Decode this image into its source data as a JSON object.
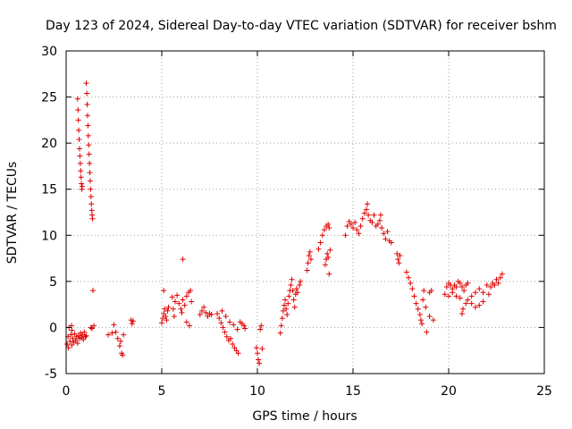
{
  "chart_data": {
    "type": "scatter",
    "title": "Day 123 of 2024, Sidereal Day-to-day VTEC variation (SDTVAR) for receiver bshm",
    "xlabel": "GPS time / hours",
    "ylabel": "SDTVAR / TECUs",
    "xlim": [
      0,
      25
    ],
    "ylim": [
      -5,
      30
    ],
    "xticks": [
      0,
      5,
      10,
      15,
      20,
      25
    ],
    "yticks": [
      -5,
      0,
      5,
      10,
      15,
      20,
      25,
      30
    ],
    "xtick_labels": [
      "0",
      "5",
      "10",
      "15",
      "20",
      "25"
    ],
    "ytick_labels": [
      "-5",
      "0",
      "5",
      "10",
      "15",
      "20",
      "25",
      "30"
    ],
    "grid": true,
    "marker": "+",
    "series": [
      {
        "name": "SDTVAR",
        "color": "#e00000",
        "points": [
          [
            0.05,
            -1.8
          ],
          [
            0.1,
            -1.0
          ],
          [
            0.12,
            -2.2
          ],
          [
            0.15,
            0.0
          ],
          [
            0.2,
            -1.5
          ],
          [
            0.25,
            -0.8
          ],
          [
            0.3,
            -1.9
          ],
          [
            0.35,
            -1.2
          ],
          [
            0.4,
            -1.6
          ],
          [
            0.45,
            -0.7
          ],
          [
            0.5,
            -1.4
          ],
          [
            0.55,
            -1.0
          ],
          [
            0.6,
            -1.7
          ],
          [
            0.65,
            -0.9
          ],
          [
            0.7,
            -1.2
          ],
          [
            0.75,
            -0.6
          ],
          [
            0.8,
            -1.1
          ],
          [
            0.85,
            -0.8
          ],
          [
            0.9,
            -1.3
          ],
          [
            0.95,
            -0.5
          ],
          [
            1.0,
            -1.0
          ],
          [
            1.05,
            -0.9
          ],
          [
            0.28,
            0.2
          ],
          [
            0.3,
            -0.3
          ],
          [
            0.6,
            24.8
          ],
          [
            0.62,
            23.6
          ],
          [
            0.64,
            22.5
          ],
          [
            0.66,
            21.4
          ],
          [
            0.68,
            20.4
          ],
          [
            0.7,
            19.4
          ],
          [
            0.72,
            18.6
          ],
          [
            0.74,
            17.8
          ],
          [
            0.76,
            17.0
          ],
          [
            0.78,
            16.3
          ],
          [
            0.8,
            15.6
          ],
          [
            0.82,
            15.0
          ],
          [
            0.84,
            15.3
          ],
          [
            1.05,
            26.5
          ],
          [
            1.08,
            25.4
          ],
          [
            1.1,
            24.2
          ],
          [
            1.12,
            23.0
          ],
          [
            1.14,
            21.9
          ],
          [
            1.16,
            20.8
          ],
          [
            1.18,
            19.8
          ],
          [
            1.2,
            18.8
          ],
          [
            1.22,
            17.8
          ],
          [
            1.24,
            16.8
          ],
          [
            1.26,
            15.9
          ],
          [
            1.28,
            15.0
          ],
          [
            1.3,
            14.2
          ],
          [
            1.32,
            13.4
          ],
          [
            1.34,
            12.7
          ],
          [
            1.36,
            12.2
          ],
          [
            1.38,
            11.8
          ],
          [
            1.4,
            4.0
          ],
          [
            1.3,
            0.0
          ],
          [
            1.45,
            0.2
          ],
          [
            1.35,
            -0.1
          ],
          [
            2.2,
            -0.8
          ],
          [
            2.4,
            -0.6
          ],
          [
            2.5,
            0.3
          ],
          [
            2.6,
            -0.5
          ],
          [
            2.7,
            -1.2
          ],
          [
            2.8,
            -2.0
          ],
          [
            2.9,
            -2.8
          ],
          [
            2.95,
            -3.0
          ],
          [
            3.0,
            -0.8
          ],
          [
            2.85,
            -1.5
          ],
          [
            3.4,
            0.8
          ],
          [
            3.45,
            0.4
          ],
          [
            3.5,
            0.7
          ],
          [
            5.0,
            0.5
          ],
          [
            5.05,
            1.0
          ],
          [
            5.1,
            1.5
          ],
          [
            5.15,
            2.0
          ],
          [
            5.2,
            1.2
          ],
          [
            5.25,
            0.8
          ],
          [
            5.3,
            1.8
          ],
          [
            5.35,
            2.2
          ],
          [
            5.1,
            4.0
          ],
          [
            5.55,
            3.3
          ],
          [
            5.6,
            2.0
          ],
          [
            5.65,
            1.2
          ],
          [
            5.7,
            2.8
          ],
          [
            5.8,
            3.5
          ],
          [
            5.9,
            2.6
          ],
          [
            6.0,
            2.0
          ],
          [
            6.05,
            1.6
          ],
          [
            6.1,
            3.0
          ],
          [
            6.2,
            2.4
          ],
          [
            6.3,
            3.4
          ],
          [
            6.4,
            3.8
          ],
          [
            6.5,
            4.0
          ],
          [
            6.55,
            2.8
          ],
          [
            6.1,
            7.4
          ],
          [
            6.3,
            0.6
          ],
          [
            6.45,
            0.2
          ],
          [
            7.0,
            1.4
          ],
          [
            7.1,
            1.8
          ],
          [
            7.2,
            2.2
          ],
          [
            7.3,
            1.6
          ],
          [
            7.4,
            1.2
          ],
          [
            7.5,
            1.5
          ],
          [
            7.6,
            1.4
          ],
          [
            7.9,
            1.5
          ],
          [
            8.0,
            1.0
          ],
          [
            8.1,
            0.5
          ],
          [
            8.2,
            0.0
          ],
          [
            8.3,
            -0.5
          ],
          [
            8.4,
            -1.0
          ],
          [
            8.5,
            -1.4
          ],
          [
            8.6,
            -1.2
          ],
          [
            8.7,
            -1.8
          ],
          [
            8.8,
            -2.2
          ],
          [
            8.9,
            -2.5
          ],
          [
            9.0,
            -2.8
          ],
          [
            8.15,
            1.8
          ],
          [
            8.35,
            1.2
          ],
          [
            8.55,
            0.6
          ],
          [
            8.75,
            0.3
          ],
          [
            8.95,
            -0.2
          ],
          [
            9.1,
            0.6
          ],
          [
            9.2,
            0.4
          ],
          [
            9.3,
            0.2
          ],
          [
            9.35,
            -0.1
          ],
          [
            9.95,
            -2.2
          ],
          [
            10.0,
            -2.8
          ],
          [
            10.05,
            -3.5
          ],
          [
            10.1,
            -3.9
          ],
          [
            10.15,
            -0.2
          ],
          [
            10.2,
            0.2
          ],
          [
            10.25,
            -2.3
          ],
          [
            11.2,
            -0.6
          ],
          [
            11.25,
            0.2
          ],
          [
            11.3,
            1.0
          ],
          [
            11.35,
            1.8
          ],
          [
            11.4,
            2.4
          ],
          [
            11.45,
            3.0
          ],
          [
            11.5,
            2.0
          ],
          [
            11.55,
            1.4
          ],
          [
            11.6,
            2.6
          ],
          [
            11.65,
            3.4
          ],
          [
            11.7,
            4.0
          ],
          [
            11.75,
            4.6
          ],
          [
            11.8,
            5.2
          ],
          [
            11.85,
            4.0
          ],
          [
            11.9,
            3.0
          ],
          [
            11.95,
            2.2
          ],
          [
            12.0,
            3.6
          ],
          [
            12.05,
            4.2
          ],
          [
            12.1,
            3.8
          ],
          [
            12.2,
            4.6
          ],
          [
            12.25,
            5.0
          ],
          [
            12.6,
            6.2
          ],
          [
            12.65,
            7.0
          ],
          [
            12.7,
            7.8
          ],
          [
            12.75,
            8.2
          ],
          [
            12.8,
            7.4
          ],
          [
            13.2,
            8.5
          ],
          [
            13.3,
            9.2
          ],
          [
            13.4,
            10.0
          ],
          [
            13.5,
            10.6
          ],
          [
            13.6,
            11.0
          ],
          [
            13.7,
            11.2
          ],
          [
            13.75,
            10.8
          ],
          [
            13.55,
            6.8
          ],
          [
            13.6,
            7.4
          ],
          [
            13.65,
            8.0
          ],
          [
            13.7,
            7.6
          ],
          [
            13.75,
            5.8
          ],
          [
            13.8,
            8.4
          ],
          [
            14.6,
            10.0
          ],
          [
            14.7,
            11.0
          ],
          [
            14.8,
            11.5
          ],
          [
            14.9,
            11.2
          ],
          [
            15.0,
            10.8
          ],
          [
            15.1,
            11.4
          ],
          [
            15.2,
            10.6
          ],
          [
            15.3,
            10.2
          ],
          [
            15.4,
            11.0
          ],
          [
            15.5,
            11.8
          ],
          [
            15.6,
            12.4
          ],
          [
            15.7,
            12.8
          ],
          [
            15.75,
            13.4
          ],
          [
            15.8,
            12.2
          ],
          [
            15.9,
            11.6
          ],
          [
            16.0,
            11.4
          ],
          [
            16.1,
            12.2
          ],
          [
            16.2,
            11.0
          ],
          [
            16.3,
            11.2
          ],
          [
            16.4,
            11.6
          ],
          [
            16.45,
            12.2
          ],
          [
            16.5,
            10.8
          ],
          [
            16.6,
            10.2
          ],
          [
            16.7,
            9.6
          ],
          [
            16.8,
            10.4
          ],
          [
            16.9,
            9.4
          ],
          [
            17.0,
            9.2
          ],
          [
            17.3,
            8.0
          ],
          [
            17.35,
            7.4
          ],
          [
            17.4,
            7.0
          ],
          [
            17.45,
            7.8
          ],
          [
            17.8,
            6.0
          ],
          [
            17.9,
            5.4
          ],
          [
            18.0,
            4.8
          ],
          [
            18.1,
            4.2
          ],
          [
            18.2,
            3.4
          ],
          [
            18.3,
            2.6
          ],
          [
            18.4,
            2.0
          ],
          [
            18.5,
            1.4
          ],
          [
            18.55,
            0.8
          ],
          [
            18.6,
            0.4
          ],
          [
            18.65,
            3.0
          ],
          [
            18.7,
            4.0
          ],
          [
            18.8,
            2.2
          ],
          [
            18.85,
            -0.5
          ],
          [
            19.0,
            3.8
          ],
          [
            19.1,
            4.0
          ],
          [
            19.0,
            1.2
          ],
          [
            19.2,
            0.8
          ],
          [
            19.9,
            4.4
          ],
          [
            20.0,
            4.8
          ],
          [
            20.1,
            4.6
          ],
          [
            20.2,
            4.2
          ],
          [
            20.3,
            4.6
          ],
          [
            20.4,
            4.4
          ],
          [
            20.5,
            5.0
          ],
          [
            20.6,
            4.8
          ],
          [
            20.7,
            4.4
          ],
          [
            20.8,
            4.0
          ],
          [
            20.9,
            4.6
          ],
          [
            21.0,
            4.8
          ],
          [
            19.8,
            3.6
          ],
          [
            20.0,
            3.4
          ],
          [
            20.2,
            3.8
          ],
          [
            20.4,
            3.4
          ],
          [
            20.6,
            3.2
          ],
          [
            20.7,
            1.5
          ],
          [
            20.75,
            2.0
          ],
          [
            20.9,
            2.6
          ],
          [
            21.0,
            3.0
          ],
          [
            21.2,
            2.6
          ],
          [
            21.4,
            2.2
          ],
          [
            21.6,
            2.4
          ],
          [
            21.8,
            2.8
          ],
          [
            21.2,
            3.4
          ],
          [
            21.4,
            3.8
          ],
          [
            21.6,
            4.2
          ],
          [
            21.8,
            3.8
          ],
          [
            22.0,
            4.6
          ],
          [
            22.1,
            3.6
          ],
          [
            22.2,
            4.4
          ],
          [
            22.3,
            4.8
          ],
          [
            22.4,
            4.6
          ],
          [
            22.5,
            5.2
          ],
          [
            22.6,
            4.8
          ],
          [
            22.7,
            5.4
          ],
          [
            22.8,
            5.8
          ]
        ]
      }
    ]
  }
}
